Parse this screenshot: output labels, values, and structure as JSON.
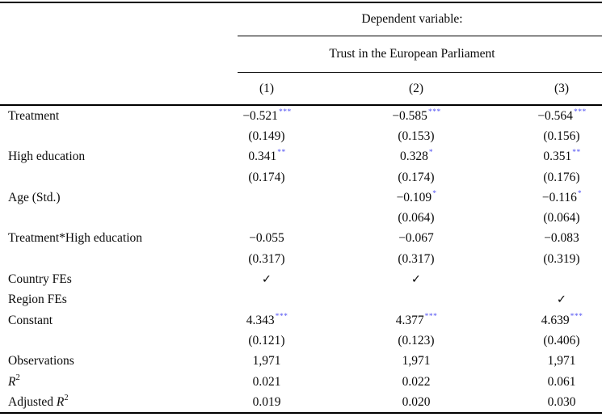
{
  "colors": {
    "stars": "#4f4ff2",
    "text": "#0a0a0a",
    "rules": "#000000"
  },
  "table": {
    "dependent_variable_label": "Dependent variable:",
    "dependent_variable": "Trust in the European Parliament",
    "column_headers": [
      "(1)",
      "(2)",
      "(3)"
    ],
    "rows": [
      {
        "label": "Treatment",
        "cells": [
          {
            "t": "−0.521",
            "s": "***"
          },
          {
            "t": "−0.585",
            "s": "***"
          },
          {
            "t": "−0.564",
            "s": "***"
          }
        ]
      },
      {
        "label": "",
        "cells": [
          {
            "t": "(0.149)"
          },
          {
            "t": "(0.153)"
          },
          {
            "t": "(0.156)"
          }
        ]
      },
      {
        "label": "High education",
        "cells": [
          {
            "t": "0.341",
            "s": "**"
          },
          {
            "t": "0.328",
            "s": "*"
          },
          {
            "t": "0.351",
            "s": "**"
          }
        ]
      },
      {
        "label": "",
        "cells": [
          {
            "t": "(0.174)"
          },
          {
            "t": "(0.174)"
          },
          {
            "t": "(0.176)"
          }
        ]
      },
      {
        "label": "Age (Std.)",
        "cells": [
          {
            "t": ""
          },
          {
            "t": "−0.109",
            "s": "*"
          },
          {
            "t": "−0.116",
            "s": "*"
          }
        ]
      },
      {
        "label": "",
        "cells": [
          {
            "t": ""
          },
          {
            "t": "(0.064)"
          },
          {
            "t": "(0.064)"
          }
        ]
      },
      {
        "label": "Treatment*High education",
        "cells": [
          {
            "t": "−0.055"
          },
          {
            "t": "−0.067"
          },
          {
            "t": "−0.083"
          }
        ]
      },
      {
        "label": "",
        "cells": [
          {
            "t": "(0.317)"
          },
          {
            "t": "(0.317)"
          },
          {
            "t": "(0.319)"
          }
        ]
      },
      {
        "label": "Country FEs",
        "cells": [
          {
            "t": "✓"
          },
          {
            "t": "✓"
          },
          {
            "t": ""
          }
        ]
      },
      {
        "label": "Region FEs",
        "cells": [
          {
            "t": ""
          },
          {
            "t": ""
          },
          {
            "t": "✓"
          }
        ]
      },
      {
        "label": "Constant",
        "cells": [
          {
            "t": "4.343",
            "s": "***"
          },
          {
            "t": "4.377",
            "s": "***"
          },
          {
            "t": "4.639",
            "s": "***"
          }
        ]
      },
      {
        "label": "",
        "cells": [
          {
            "t": "(0.121)"
          },
          {
            "t": "(0.123)"
          },
          {
            "t": "(0.406)"
          }
        ]
      },
      {
        "label": "Observations",
        "cells": [
          {
            "t": "1,971"
          },
          {
            "t": "1,971"
          },
          {
            "t": "1,971"
          }
        ]
      },
      {
        "label": "R^2",
        "cells": [
          {
            "t": "0.021"
          },
          {
            "t": "0.022"
          },
          {
            "t": "0.061"
          }
        ]
      },
      {
        "label": "Adjusted R^2",
        "cells": [
          {
            "t": "0.019"
          },
          {
            "t": "0.020"
          },
          {
            "t": "0.030"
          }
        ]
      }
    ]
  }
}
